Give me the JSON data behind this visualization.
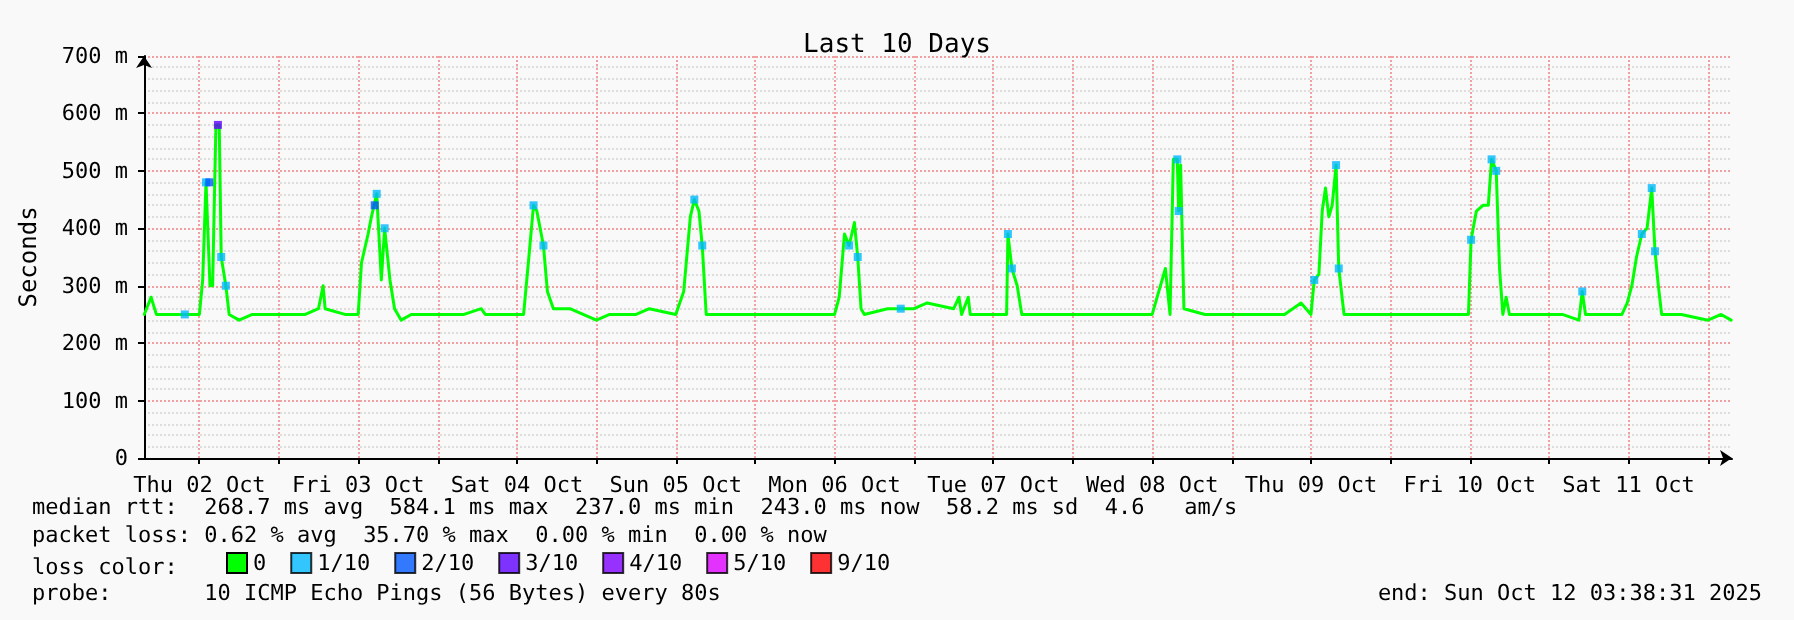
{
  "chart_data": {
    "type": "line",
    "title": "Last 10 Days",
    "ylabel": "Seconds",
    "x": [
      "2025-10-02T03:40",
      "2025-10-02T04:42",
      "2025-10-02T05:30",
      "2025-10-02T09:00",
      "2025-10-02T12:00",
      "2025-10-02T12:30",
      "2025-10-02T13:00",
      "2025-10-02T13:36",
      "2025-10-02T14:00",
      "2025-10-02T14:30",
      "2025-10-02T15:00",
      "2025-10-02T15:18",
      "2025-10-02T16:00",
      "2025-10-02T16:30",
      "2025-10-02T18:00",
      "2025-10-02T20:00",
      "2025-10-03T00:00",
      "2025-10-03T02:00",
      "2025-10-03T04:00",
      "2025-10-03T06:00",
      "2025-10-03T06:42",
      "2025-10-03T07:00",
      "2025-10-03T10:00",
      "2025-10-03T12:00",
      "2025-10-03T12:30",
      "2025-10-03T13:30",
      "2025-10-03T14:00",
      "2025-10-03T14:48",
      "2025-10-03T15:30",
      "2025-10-03T16:00",
      "2025-10-03T16:48",
      "2025-10-03T17:30",
      "2025-10-03T18:30",
      "2025-10-03T20:00",
      "2025-10-04T00:00",
      "2025-10-04T04:00",
      "2025-10-04T06:36",
      "2025-10-04T07:12",
      "2025-10-04T10:00",
      "2025-10-04T13:00",
      "2025-10-04T13:48",
      "2025-10-04T14:30",
      "2025-10-04T15:00",
      "2025-10-04T16:00",
      "2025-10-04T16:36",
      "2025-10-04T17:30",
      "2025-10-04T20:00",
      "2025-10-04T22:00",
      "2025-10-05T00:00",
      "2025-10-05T02:00",
      "2025-10-05T06:00",
      "2025-10-05T08:00",
      "2025-10-05T12:00",
      "2025-10-05T13:12",
      "2025-10-05T14:12",
      "2025-10-05T14:48",
      "2025-10-05T15:30",
      "2025-10-05T16:00",
      "2025-10-05T16:36",
      "2025-10-05T20:00",
      "2025-10-06T00:00",
      "2025-10-06T04:00",
      "2025-10-06T08:00",
      "2025-10-06T12:00",
      "2025-10-06T12:42",
      "2025-10-06T13:30",
      "2025-10-06T14:12",
      "2025-10-06T15:00",
      "2025-10-06T15:30",
      "2025-10-06T16:00",
      "2025-10-06T16:30",
      "2025-10-06T20:00",
      "2025-10-07T00:00",
      "2025-10-07T02:00",
      "2025-10-07T06:00",
      "2025-10-07T06:48",
      "2025-10-07T07:12",
      "2025-10-07T08:12",
      "2025-10-07T08:30",
      "2025-10-07T12:00",
      "2025-10-07T14:00",
      "2025-10-07T14:12",
      "2025-10-07T14:48",
      "2025-10-07T15:36",
      "2025-10-07T16:18",
      "2025-10-07T21:00",
      "2025-10-08T02:00",
      "2025-10-08T07:00",
      "2025-10-08T12:00",
      "2025-10-08T14:00",
      "2025-10-08T14:42",
      "2025-10-08T15:12",
      "2025-10-08T15:48",
      "2025-10-08T16:00",
      "2025-10-08T16:18",
      "2025-10-08T16:48",
      "2025-10-08T20:00",
      "2025-10-09T02:00",
      "2025-10-09T08:00",
      "2025-10-09T10:30",
      "2025-10-09T12:00",
      "2025-10-09T12:30",
      "2025-10-09T13:12",
      "2025-10-09T13:42",
      "2025-10-09T14:12",
      "2025-10-09T14:42",
      "2025-10-09T15:12",
      "2025-10-09T15:48",
      "2025-10-09T16:12",
      "2025-10-09T17:00",
      "2025-10-09T18:00",
      "2025-10-10T00:00",
      "2025-10-10T06:00",
      "2025-10-10T10:00",
      "2025-10-10T11:48",
      "2025-10-10T12:12",
      "2025-10-10T13:00",
      "2025-10-10T14:00",
      "2025-10-10T14:48",
      "2025-10-10T15:18",
      "2025-10-10T16:00",
      "2025-10-10T16:30",
      "2025-10-10T17:00",
      "2025-10-10T17:30",
      "2025-10-10T18:00",
      "2025-10-11T00:00",
      "2025-10-11T02:00",
      "2025-10-11T04:30",
      "2025-10-11T05:00",
      "2025-10-11T05:30",
      "2025-10-11T08:00",
      "2025-10-11T11:00",
      "2025-10-11T11:48",
      "2025-10-11T12:30",
      "2025-10-11T13:12",
      "2025-10-11T14:00",
      "2025-10-11T14:48",
      "2025-10-11T15:30",
      "2025-10-11T16:00",
      "2025-10-11T16:30",
      "2025-10-11T17:00",
      "2025-10-11T20:00",
      "2025-10-12T00:00",
      "2025-10-12T02:00",
      "2025-10-12T03:30"
    ],
    "series": [
      {
        "name": "0",
        "color": "#00ff00",
        "values": [
          250,
          280,
          250,
          250,
          250,
          310,
          480,
          300,
          300,
          580,
          580,
          350,
          300,
          250,
          240,
          250,
          250,
          250,
          250,
          260,
          300,
          260,
          250,
          250,
          340,
          390,
          420,
          460,
          310,
          400,
          310,
          260,
          240,
          250,
          250,
          250,
          260,
          250,
          250,
          250,
          350,
          440,
          430,
          370,
          290,
          260,
          260,
          250,
          240,
          250,
          250,
          260,
          250,
          290,
          420,
          450,
          430,
          370,
          250,
          250,
          250,
          250,
          250,
          250,
          280,
          390,
          370,
          410,
          350,
          260,
          250,
          260,
          260,
          270,
          260,
          280,
          250,
          280,
          250,
          250,
          250,
          390,
          330,
          300,
          250,
          250,
          250,
          250,
          250,
          330,
          250,
          520,
          520,
          430,
          510,
          260,
          250,
          250,
          250,
          270,
          250,
          310,
          320,
          430,
          470,
          420,
          440,
          510,
          330,
          250,
          250,
          250,
          250,
          250,
          250,
          380,
          430,
          440,
          440,
          520,
          500,
          330,
          250,
          280,
          250,
          250,
          250,
          240,
          290,
          250,
          250,
          250,
          270,
          300,
          350,
          390,
          400,
          470,
          360,
          300,
          250,
          250,
          240,
          250,
          240
        ]
      },
      {
        "name": "1/10",
        "color": "#00b8ff",
        "type": "scatter",
        "marker": "square",
        "x": [
          "2025-10-02T09:48",
          "2025-10-02T13:00",
          "2025-10-02T15:18",
          "2025-10-02T16:00",
          "2025-10-03T14:48",
          "2025-10-03T16:00",
          "2025-10-04T14:30",
          "2025-10-04T16:00",
          "2025-10-05T14:48",
          "2025-10-05T16:00",
          "2025-10-06T14:12",
          "2025-10-06T15:30",
          "2025-10-06T22:00",
          "2025-10-07T14:12",
          "2025-10-07T14:48",
          "2025-10-08T15:48",
          "2025-10-08T16:00",
          "2025-10-09T12:30",
          "2025-10-09T15:48",
          "2025-10-09T16:12",
          "2025-10-10T12:12",
          "2025-10-10T15:18",
          "2025-10-10T16:00",
          "2025-10-11T05:00",
          "2025-10-11T14:00",
          "2025-10-11T15:30",
          "2025-10-11T16:00"
        ],
        "values": [
          250,
          480,
          350,
          300,
          460,
          400,
          440,
          370,
          450,
          370,
          370,
          350,
          260,
          390,
          330,
          520,
          430,
          310,
          510,
          330,
          380,
          520,
          500,
          290,
          390,
          470,
          360
        ]
      },
      {
        "name": "2/10",
        "color": "#0059ff",
        "type": "scatter",
        "marker": "square",
        "x": [
          "2025-10-02T13:30",
          "2025-10-03T14:30"
        ],
        "values": [
          480,
          440
        ]
      },
      {
        "name": "3/10",
        "color": "#5e00ff",
        "type": "scatter",
        "marker": "square",
        "x": [
          "2025-10-02T14:48"
        ],
        "values": [
          580
        ]
      },
      {
        "name": "4/10",
        "color": "#7e00ff",
        "type": "scatter",
        "marker": "square",
        "values": [
          null,
          null,
          null,
          null,
          null,
          null,
          null,
          null,
          null,
          null,
          null,
          null,
          null,
          null,
          null,
          null,
          null,
          null,
          null,
          null,
          null,
          null,
          null,
          null,
          null,
          null,
          null,
          null,
          null,
          null,
          null,
          null,
          null,
          null,
          null,
          null,
          null,
          null,
          null,
          null,
          null,
          null,
          null,
          null,
          null,
          null,
          null,
          null,
          null,
          null,
          null,
          null,
          null,
          null,
          null,
          null,
          null,
          null,
          null,
          null,
          null,
          null,
          null,
          null,
          null,
          null,
          null,
          null,
          null,
          null,
          null,
          null,
          null,
          null,
          null,
          null,
          null,
          null,
          null,
          null,
          null,
          null,
          null,
          null,
          null,
          null,
          null,
          null,
          null,
          null,
          null,
          null,
          null,
          null,
          null,
          null,
          null,
          null,
          null,
          null,
          null,
          null,
          null,
          null,
          null,
          null,
          null,
          null,
          null,
          null,
          null,
          null,
          null,
          null,
          null,
          null,
          null,
          null,
          null,
          null,
          null,
          null,
          null,
          null,
          null,
          null,
          null,
          null,
          null,
          null,
          null,
          null,
          null,
          null,
          null,
          null,
          null,
          null,
          null,
          null,
          null,
          null,
          null,
          null,
          null
        ]
      },
      {
        "name": "5/10",
        "color": "#dd00ff",
        "type": "scatter",
        "marker": "square",
        "values": [
          null,
          null,
          null,
          null,
          null,
          null,
          null,
          null,
          null,
          null,
          null,
          null,
          null,
          null,
          null,
          null,
          null,
          null,
          null,
          null,
          null,
          null,
          null,
          null,
          null,
          null,
          null,
          null,
          null,
          null,
          null,
          null,
          null,
          null,
          null,
          null,
          null,
          null,
          null,
          null,
          null,
          null,
          null,
          null,
          null,
          null,
          null,
          null,
          null,
          null,
          null,
          null,
          null,
          null,
          null,
          null,
          null,
          null,
          null,
          null,
          null,
          null,
          null,
          null,
          null,
          null,
          null,
          null,
          null,
          null,
          null,
          null,
          null,
          null,
          null,
          null,
          null,
          null,
          null,
          null,
          null,
          null,
          null,
          null,
          null,
          null,
          null,
          null,
          null,
          null,
          null,
          null,
          null,
          null,
          null,
          null,
          null,
          null,
          null,
          null,
          null,
          null,
          null,
          null,
          null,
          null,
          null,
          null,
          null,
          null,
          null,
          null,
          null,
          null,
          null,
          null,
          null,
          null,
          null,
          null,
          null,
          null,
          null,
          null,
          null,
          null,
          null,
          null,
          null,
          null,
          null,
          null,
          null,
          null,
          null,
          null,
          null,
          null,
          null,
          null,
          null,
          null,
          null,
          null,
          null
        ]
      },
      {
        "name": "9/10",
        "color": "#ff0000",
        "type": "scatter",
        "marker": "square",
        "values": [
          null,
          null,
          null,
          null,
          null,
          null,
          null,
          null,
          null,
          null,
          null,
          null,
          null,
          null,
          null,
          null,
          null,
          null,
          null,
          null,
          null,
          null,
          null,
          null,
          null,
          null,
          null,
          null,
          null,
          null,
          null,
          null,
          null,
          null,
          null,
          null,
          null,
          null,
          null,
          null,
          null,
          null,
          null,
          null,
          null,
          null,
          null,
          null,
          null,
          null,
          null,
          null,
          null,
          null,
          null,
          null,
          null,
          null,
          null,
          null,
          null,
          null,
          null,
          null,
          null,
          null,
          null,
          null,
          null,
          null,
          null,
          null,
          null,
          null,
          null,
          null,
          null,
          null,
          null,
          null,
          null,
          null,
          null,
          null,
          null,
          null,
          null,
          null,
          null,
          null,
          null,
          null,
          null,
          null,
          null,
          null,
          null,
          null,
          null,
          null,
          null,
          null,
          null,
          null,
          null,
          null,
          null,
          null,
          null,
          null,
          null,
          null,
          null,
          null,
          null,
          null,
          null,
          null,
          null,
          null,
          null,
          null,
          null,
          null,
          null,
          null,
          null,
          null,
          null,
          null,
          null,
          null,
          null,
          null,
          null,
          null,
          null,
          null,
          null,
          null,
          null,
          null,
          null,
          null,
          null
        ]
      }
    ],
    "legend": "bottom left",
    "legend_title": "loss color:",
    "xlim": [
      "2025-10-02T03:38",
      "2025-10-12T03:38"
    ],
    "xticks": [
      {
        "value": "2025-10-02T12:00",
        "label": "Thu 02 Oct"
      },
      {
        "value": "2025-10-03T00:00",
        "label": null
      },
      {
        "value": "2025-10-03T12:00",
        "label": "Fri 03 Oct"
      },
      {
        "value": "2025-10-04T00:00",
        "label": null
      },
      {
        "value": "2025-10-04T12:00",
        "label": "Sat 04 Oct"
      },
      {
        "value": "2025-10-05T00:00",
        "label": null
      },
      {
        "value": "2025-10-05T12:00",
        "label": "Sun 05 Oct"
      },
      {
        "value": "2025-10-06T00:00",
        "label": null
      },
      {
        "value": "2025-10-06T12:00",
        "label": "Mon 06 Oct"
      },
      {
        "value": "2025-10-07T00:00",
        "label": null
      },
      {
        "value": "2025-10-07T12:00",
        "label": "Tue 07 Oct"
      },
      {
        "value": "2025-10-08T00:00",
        "label": null
      },
      {
        "value": "2025-10-08T12:00",
        "label": "Wed 08 Oct"
      },
      {
        "value": "2025-10-09T00:00",
        "label": null
      },
      {
        "value": "2025-10-09T12:00",
        "label": "Thu 09 Oct"
      },
      {
        "value": "2025-10-10T00:00",
        "label": null
      },
      {
        "value": "2025-10-10T12:00",
        "label": "Fri 10 Oct"
      },
      {
        "value": "2025-10-11T00:00",
        "label": null
      },
      {
        "value": "2025-10-11T12:00",
        "label": "Sat 11 Oct"
      },
      {
        "value": "2025-10-12T00:00",
        "label": null
      }
    ],
    "ylim": [
      0,
      700
    ],
    "yticks": [
      0,
      {
        "value": 100,
        "label": "100 m"
      },
      {
        "value": 200,
        "label": "200 m"
      },
      {
        "value": 300,
        "label": "300 m"
      },
      {
        "value": 400,
        "label": "400 m"
      },
      {
        "value": 500,
        "label": "500 m"
      },
      {
        "value": 600,
        "label": "600 m"
      },
      {
        "value": 700,
        "label": "700 m"
      }
    ],
    "grid": true,
    "marker": "none",
    "line_style": "solid",
    "annotations": [
      "median rtt:  268.7 ms avg  584.1 ms max  237.0 ms min  243.0 ms now  58.2 ms sd  4.6   am/s",
      "packet loss: 0.62 % avg  35.70 % max  0.00 % min  0.00 % now",
      "probe:       10 ICMP Echo Pings (56 Bytes) every 80s",
      "end: Sun Oct 12 03:38:31 2025"
    ]
  }
}
